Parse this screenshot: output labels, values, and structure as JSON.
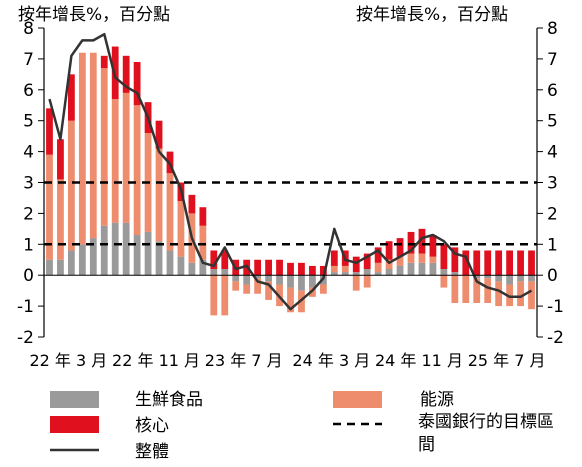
{
  "chart_data": {
    "type": "bar",
    "left_axis_label": "按年增長%，百分點",
    "right_axis_label": "按年增長%，百分點",
    "y_ticks": [
      8,
      7,
      6,
      5,
      4,
      3,
      2,
      1,
      0,
      -1,
      -2
    ],
    "ylim": [
      -2,
      8
    ],
    "x_tick_labels": [
      "22 年 3 月",
      "22 年 11 月",
      "23 年 7 月",
      "24 年 3 月",
      "24 年 11 月",
      "25 年 7 月"
    ],
    "legend": {
      "fresh_food": "生鮮食品",
      "energy": "能源",
      "core": "核心",
      "target_band": "泰國銀行的目標區間",
      "headline": "整體"
    },
    "target_band": [
      1,
      3
    ],
    "colors": {
      "fresh_food": "#9a9a9a",
      "energy": "#ee8d6e",
      "core": "#e0101e",
      "headline": "#333333",
      "target_band": "#000000"
    },
    "months": [
      "2022-01",
      "2022-02",
      "2022-03",
      "2022-04",
      "2022-05",
      "2022-06",
      "2022-07",
      "2022-08",
      "2022-09",
      "2022-10",
      "2022-11",
      "2022-12",
      "2023-01",
      "2023-02",
      "2023-03",
      "2023-04",
      "2023-05",
      "2023-06",
      "2023-07",
      "2023-08",
      "2023-09",
      "2023-10",
      "2023-11",
      "2023-12",
      "2024-01",
      "2024-02",
      "2024-03",
      "2024-04",
      "2024-05",
      "2024-06",
      "2024-07",
      "2024-08",
      "2024-09",
      "2024-10",
      "2024-11",
      "2024-12",
      "2025-01",
      "2025-02",
      "2025-03",
      "2025-04",
      "2025-05",
      "2025-06",
      "2025-07",
      "2025-08",
      "2025-09"
    ],
    "series": [
      {
        "name": "生鮮食品",
        "values": [
          0.5,
          0.5,
          0.8,
          1.0,
          1.2,
          1.6,
          1.7,
          1.7,
          1.3,
          1.4,
          1.1,
          0.8,
          0.6,
          0.4,
          0.5,
          0.2,
          0.2,
          -0.2,
          -0.3,
          -0.1,
          -0.2,
          -0.3,
          -0.4,
          -0.5,
          -0.4,
          -0.3,
          0.1,
          0.1,
          0.1,
          0.2,
          0.1,
          0.2,
          0.3,
          0.4,
          0.4,
          0.4,
          0.2,
          0.1,
          0.0,
          -0.1,
          -0.1,
          -0.2,
          -0.3,
          -0.2,
          -0.2
        ]
      },
      {
        "name": "能源",
        "values": [
          3.4,
          2.6,
          4.2,
          6.2,
          6.0,
          5.1,
          4.0,
          4.2,
          4.2,
          3.2,
          3.0,
          2.5,
          1.8,
          1.6,
          1.1,
          -1.3,
          -1.3,
          -0.3,
          -0.3,
          -0.5,
          -0.6,
          -0.7,
          -0.8,
          -0.7,
          -0.3,
          -0.3,
          0.2,
          0.2,
          -0.5,
          -0.4,
          0.3,
          0.3,
          0.3,
          0.3,
          0.3,
          0.2,
          -0.4,
          -0.9,
          -0.9,
          -0.8,
          -0.8,
          -0.8,
          -0.7,
          -0.8,
          -0.9
        ]
      },
      {
        "name": "核心",
        "values": [
          1.5,
          1.3,
          1.5,
          0.0,
          0.0,
          0.4,
          1.7,
          1.2,
          1.4,
          1.0,
          0.9,
          0.7,
          0.6,
          0.6,
          0.6,
          0.6,
          0.6,
          0.5,
          0.5,
          0.5,
          0.5,
          0.5,
          0.4,
          0.4,
          0.3,
          0.3,
          0.5,
          0.5,
          0.5,
          0.5,
          0.5,
          0.6,
          0.6,
          0.7,
          0.8,
          0.7,
          0.8,
          0.8,
          0.8,
          0.8,
          0.8,
          0.8,
          0.8,
          0.8,
          0.8
        ]
      },
      {
        "name": "整體",
        "values": [
          5.7,
          4.4,
          7.1,
          7.6,
          7.6,
          7.8,
          6.4,
          6.1,
          5.9,
          5.1,
          4.0,
          3.6,
          2.8,
          1.2,
          0.4,
          0.3,
          0.9,
          0.2,
          0.3,
          -0.2,
          -0.3,
          -0.7,
          -1.1,
          -0.8,
          -0.5,
          -0.1,
          1.5,
          0.5,
          0.4,
          0.6,
          0.8,
          0.4,
          0.6,
          0.8,
          1.2,
          1.3,
          1.1,
          0.7,
          0.6,
          -0.2,
          -0.4,
          -0.5,
          -0.7,
          -0.7,
          -0.5
        ]
      }
    ]
  }
}
